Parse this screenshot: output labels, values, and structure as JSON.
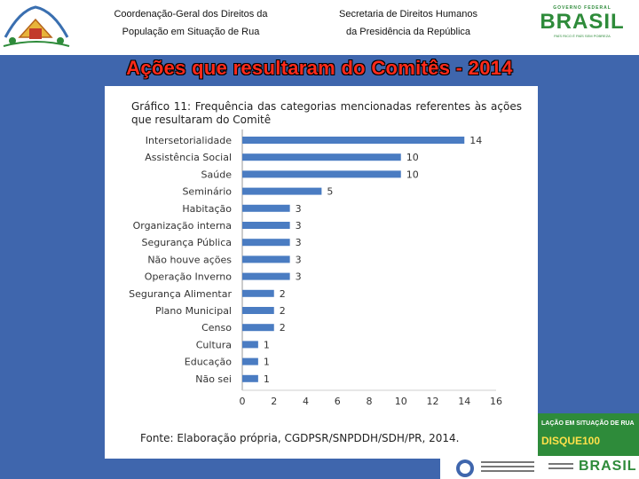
{
  "header": {
    "left_line1": "Coordenação-Geral dos Direitos da",
    "left_line2": "População em Situação de Rua",
    "right_line1": "Secretaria de Direitos Humanos",
    "right_line2": "da Presidência da República",
    "brand_top": "GOVERNO FEDERAL",
    "brand_main": "BRASIL",
    "brand_bottom": "PAÍS RICO É PAÍS SEM POBREZA"
  },
  "slide_title": "Ações que resultaram do Comitês - 2014",
  "chart_data": {
    "type": "bar",
    "orientation": "horizontal",
    "title": "Gráfico 11: Frequência das categorias mencionadas referentes às ações que resultaram do Comitê",
    "categories": [
      "Intersetorialidade",
      "Assistência Social",
      "Saúde",
      "Seminário",
      "Habitação",
      "Organização interna",
      "Segurança Pública",
      "Não houve ações",
      "Operação Inverno",
      "Segurança Alimentar",
      "Plano Municipal",
      "Censo",
      "Cultura",
      "Educação",
      "Não sei"
    ],
    "values": [
      14,
      10,
      10,
      5,
      3,
      3,
      3,
      3,
      3,
      2,
      2,
      2,
      1,
      1,
      1
    ],
    "x_ticks": [
      0,
      2,
      4,
      6,
      8,
      10,
      12,
      14,
      16
    ],
    "xlim": [
      0,
      16
    ],
    "grid": false,
    "bar_color": "#4a7cc2",
    "source": "Fonte: Elaboração própria, CGDPSR/SNPDDH/SDH/PR, 2014."
  },
  "promo": {
    "line1": "LAÇÃO EM SITUAÇÃO DE RUA",
    "line2": "DISQUE100"
  },
  "footer": {
    "brand_main": "BRASIL"
  },
  "colors": {
    "band": "#3f66ad",
    "title": "#ff2a1a",
    "bar": "#4a7cc2"
  }
}
